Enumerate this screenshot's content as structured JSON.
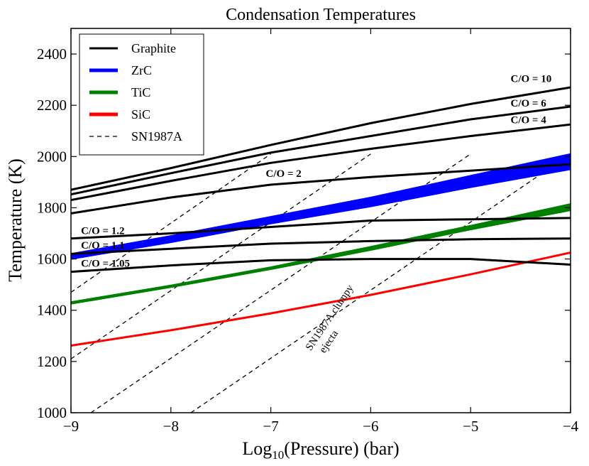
{
  "chart_data": {
    "type": "line",
    "title": "Condensation Temperatures",
    "xlabel_prefix": "Log",
    "xlabel_sub": "10",
    "xlabel_suffix": "(Pressure) (bar)",
    "ylabel": "Temperature (K)",
    "xlim": [
      -9,
      -4
    ],
    "ylim": [
      1000,
      2500
    ],
    "xticks": [
      -9,
      -8,
      -7,
      -6,
      -5,
      -4
    ],
    "xtick_labels": [
      "−9",
      "−8",
      "−7",
      "−6",
      "−5",
      "−4"
    ],
    "yticks": [
      1000,
      1200,
      1400,
      1600,
      1800,
      2000,
      2200,
      2400
    ],
    "ytick_labels": [
      "1000",
      "1200",
      "1400",
      "1600",
      "1800",
      "2000",
      "2200",
      "2400"
    ],
    "colors": {
      "graphite": "#000000",
      "zrc": "#0000ff",
      "tic": "#008000",
      "sic": "#ff0000",
      "sn": "#000000"
    },
    "legend": [
      {
        "label": "Graphite",
        "style": "graphite"
      },
      {
        "label": "ZrC",
        "style": "zrc"
      },
      {
        "label": "TiC",
        "style": "tic"
      },
      {
        "label": "SiC",
        "style": "sic"
      },
      {
        "label": "SN1987A",
        "style": "sn"
      }
    ],
    "graphite_series": [
      {
        "name": "C/O = 10",
        "x": [
          -9,
          -8,
          -7,
          -6,
          -5,
          -4
        ],
        "y": [
          1870,
          1955,
          2045,
          2130,
          2205,
          2270
        ]
      },
      {
        "name": "C/O = 6",
        "x": [
          -9,
          -8,
          -7,
          -6,
          -5,
          -4
        ],
        "y": [
          1852,
          1935,
          2015,
          2080,
          2145,
          2195
        ]
      },
      {
        "name": "C/O = 4",
        "x": [
          -9,
          -8,
          -7,
          -6,
          -5,
          -4
        ],
        "y": [
          1830,
          1905,
          1975,
          2030,
          2080,
          2125
        ]
      },
      {
        "name": "C/O = 2",
        "x": [
          -9,
          -8,
          -7,
          -6,
          -5,
          -4
        ],
        "y": [
          1778,
          1840,
          1890,
          1920,
          1945,
          1970
        ]
      },
      {
        "name": "C/O = 1.2",
        "x": [
          -9,
          -8,
          -7,
          -6,
          -5,
          -4
        ],
        "y": [
          1680,
          1700,
          1725,
          1750,
          1755,
          1760
        ]
      },
      {
        "name": "C/O = 1.1",
        "x": [
          -9,
          -8,
          -7,
          -6,
          -5,
          -4
        ],
        "y": [
          1620,
          1640,
          1660,
          1670,
          1677,
          1680
        ]
      },
      {
        "name": "C/O = 1.05",
        "x": [
          -9,
          -8,
          -7,
          -6,
          -5,
          -4
        ],
        "y": [
          1550,
          1575,
          1595,
          1600,
          1600,
          1578
        ]
      }
    ],
    "zrc_band": {
      "name": "ZrC",
      "x": [
        -9,
        -8,
        -7,
        -6,
        -5,
        -4
      ],
      "y_low": [
        1600,
        1665,
        1738,
        1805,
        1880,
        1950
      ],
      "y_high": [
        1620,
        1690,
        1765,
        1840,
        1925,
        2010
      ]
    },
    "tic_band": {
      "name": "TiC",
      "x": [
        -9,
        -8,
        -7,
        -6,
        -5,
        -4
      ],
      "y_low": [
        1425,
        1490,
        1560,
        1635,
        1715,
        1790
      ],
      "y_high": [
        1432,
        1497,
        1568,
        1648,
        1730,
        1815
      ]
    },
    "sic_series": {
      "name": "SiC",
      "x": [
        -9,
        -8,
        -7,
        -6,
        -5,
        -4
      ],
      "y": [
        1262,
        1322,
        1388,
        1460,
        1540,
        1625
      ]
    },
    "sn1987a_lines": [
      {
        "x": [
          -9,
          -6.0
        ],
        "y": [
          1210,
          2010
        ]
      },
      {
        "x": [
          -8.8,
          -5.0
        ],
        "y": [
          1000,
          2010
        ]
      },
      {
        "x": [
          -7.8,
          -4.0
        ],
        "y": [
          1000,
          2010
        ]
      },
      {
        "x": [
          -9,
          -7.0
        ],
        "y": [
          1470,
          2010
        ]
      }
    ],
    "annotations": [
      {
        "text": "C/O = 10",
        "x": -4.6,
        "y": 2290
      },
      {
        "text": "C/O = 6",
        "x": -4.6,
        "y": 2195
      },
      {
        "text": "C/O = 4",
        "x": -4.6,
        "y": 2130
      },
      {
        "text": "C/O = 2",
        "x": -7.05,
        "y": 1920
      },
      {
        "text": "C/O = 1.2",
        "x": -8.9,
        "y": 1697
      },
      {
        "text": "C/O = 1.1",
        "x": -8.9,
        "y": 1640
      },
      {
        "text": "C/O = 1.05",
        "x": -8.9,
        "y": 1570
      }
    ],
    "sn_label": {
      "line1": "SN1987A clumpy",
      "line2": "ejecta",
      "x": -6.6,
      "y": 1240,
      "angle": -56
    }
  }
}
